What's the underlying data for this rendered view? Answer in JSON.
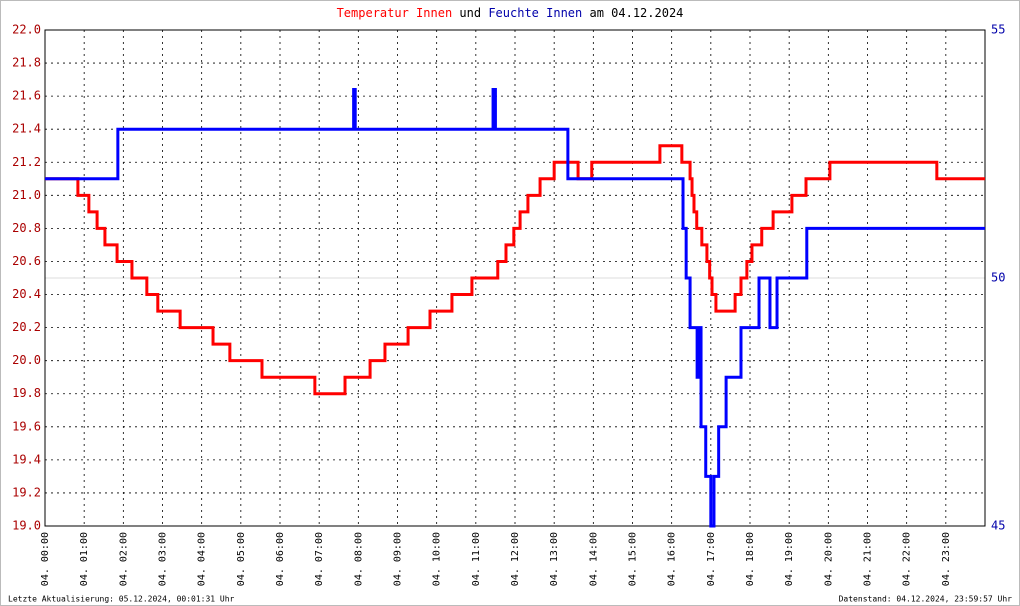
{
  "chart_data": {
    "type": "line",
    "step": true,
    "title_joiner": "und",
    "title_suffix": "am 04.12.2024",
    "footer_left": "Letzte Aktualisierung: 05.12.2024, 00:01:31 Uhr",
    "footer_right": "Datenstand: 04.12.2024, 23:59:57 Uhr",
    "xlim": [
      0,
      24
    ],
    "xticks": [
      {
        "value": 0,
        "label": "04. 00:00"
      },
      {
        "value": 1,
        "label": "04. 01:00"
      },
      {
        "value": 2,
        "label": "04. 02:00"
      },
      {
        "value": 3,
        "label": "04. 03:00"
      },
      {
        "value": 4,
        "label": "04. 04:00"
      },
      {
        "value": 5,
        "label": "04. 05:00"
      },
      {
        "value": 6,
        "label": "04. 06:00"
      },
      {
        "value": 7,
        "label": "04. 07:00"
      },
      {
        "value": 8,
        "label": "04. 08:00"
      },
      {
        "value": 9,
        "label": "04. 09:00"
      },
      {
        "value": 10,
        "label": "04. 10:00"
      },
      {
        "value": 11,
        "label": "04. 11:00"
      },
      {
        "value": 12,
        "label": "04. 12:00"
      },
      {
        "value": 13,
        "label": "04. 13:00"
      },
      {
        "value": 14,
        "label": "04. 14:00"
      },
      {
        "value": 15,
        "label": "04. 15:00"
      },
      {
        "value": 16,
        "label": "04. 16:00"
      },
      {
        "value": 17,
        "label": "04. 17:00"
      },
      {
        "value": 18,
        "label": "04. 18:00"
      },
      {
        "value": 19,
        "label": "04. 19:00"
      },
      {
        "value": 20,
        "label": "04. 20:00"
      },
      {
        "value": 21,
        "label": "04. 21:00"
      },
      {
        "value": 22,
        "label": "04. 22:00"
      },
      {
        "value": 23,
        "label": "04. 23:00"
      }
    ],
    "ylim": [
      19,
      22
    ],
    "yticks": [
      {
        "value": 19,
        "label": "19.0"
      },
      19.2,
      19.4,
      19.6,
      19.8,
      {
        "value": 20,
        "label": "20.0"
      },
      20.2,
      20.4,
      20.6,
      20.8,
      {
        "value": 21,
        "label": "21.0"
      },
      21.2,
      21.4,
      21.6,
      21.8,
      {
        "value": 22,
        "label": "22.0"
      }
    ],
    "y2lim": [
      45,
      55
    ],
    "y2ticks": [
      45,
      50,
      55
    ],
    "grid": true,
    "series": [
      {
        "name": "Temperatur Innen",
        "color": "#ff0000",
        "x": [
          0,
          0.84,
          1.12,
          1.33,
          1.53,
          1.84,
          2.22,
          2.6,
          2.88,
          3.45,
          4.29,
          4.72,
          5.54,
          6.89,
          7.66,
          8.3,
          8.68,
          9.27,
          9.83,
          10.39,
          10.9,
          11.56,
          11.77,
          11.97,
          12.13,
          12.33,
          12.64,
          13.0,
          13.61,
          13.96,
          15.7,
          16.26,
          16.47,
          16.52,
          16.57,
          16.64,
          16.77,
          16.9,
          16.97,
          17.03,
          17.13,
          17.62,
          17.77,
          17.92,
          18.05,
          18.3,
          18.59,
          19.07,
          19.43,
          20.04,
          22.77,
          24
        ],
        "values": [
          21.1,
          21.0,
          20.9,
          20.8,
          20.7,
          20.6,
          20.5,
          20.4,
          20.3,
          20.2,
          20.1,
          20.0,
          19.9,
          19.8,
          19.9,
          20.0,
          20.1,
          20.2,
          20.3,
          20.4,
          20.5,
          20.6,
          20.7,
          20.8,
          20.9,
          21.0,
          21.1,
          21.2,
          21.1,
          21.2,
          21.3,
          21.2,
          21.1,
          21.0,
          20.9,
          20.8,
          20.7,
          20.6,
          20.5,
          20.4,
          20.3,
          20.4,
          20.5,
          20.6,
          20.7,
          20.8,
          20.9,
          21.0,
          21.1,
          21.2,
          21.1,
          21.1
        ]
      },
      {
        "name": "Feuchte Innen",
        "color": "#0000ff",
        "axis": "y2",
        "x": [
          0,
          1.86,
          7.88,
          7.92,
          11.44,
          11.5,
          13.35,
          16.29,
          16.37,
          16.47,
          16.65,
          16.72,
          16.75,
          16.87,
          17.0,
          17.08,
          17.2,
          17.39,
          17.77,
          18.23,
          18.51,
          18.69,
          19.45,
          24
        ],
        "values": [
          52,
          53,
          53.8,
          53,
          53.8,
          53,
          52,
          51,
          50,
          49,
          48,
          49,
          47,
          46,
          45,
          46,
          47,
          48,
          49,
          50,
          49,
          50,
          51,
          51
        ]
      }
    ]
  }
}
